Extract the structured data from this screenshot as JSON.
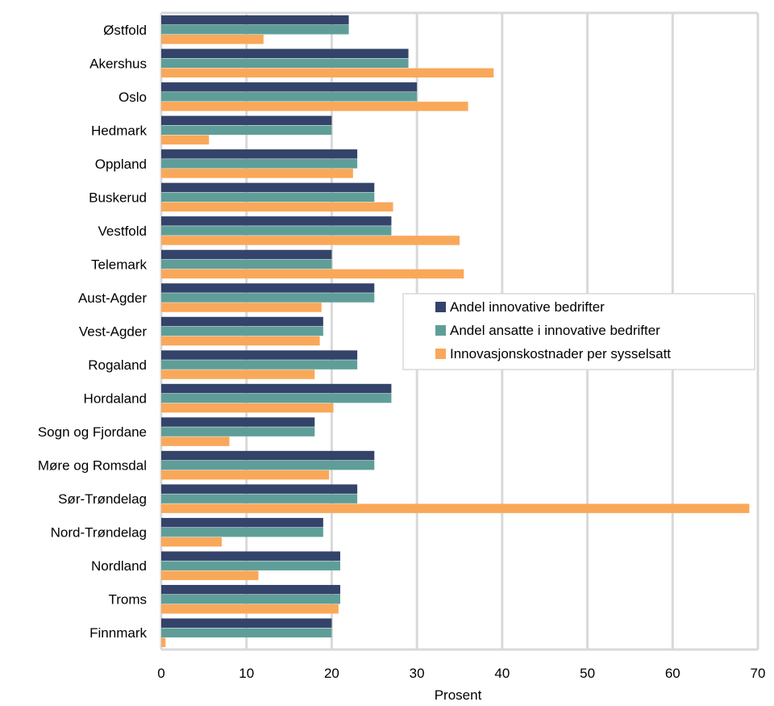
{
  "chart_data": {
    "type": "bar",
    "orientation": "horizontal",
    "categories": [
      "Østfold",
      "Akershus",
      "Oslo",
      "Hedmark",
      "Oppland",
      "Buskerud",
      "Vestfold",
      "Telemark",
      "Aust-Agder",
      "Vest-Agder",
      "Rogaland",
      "Hordaland",
      "Sogn og Fjordane",
      "Møre og Romsdal",
      "Sør-Trøndelag",
      "Nord-Trøndelag",
      "Nordland",
      "Troms",
      "Finnmark"
    ],
    "series": [
      {
        "name": "Andel innovative bedrifter",
        "color": "#34436a",
        "values": [
          22,
          29,
          30,
          20,
          23,
          25,
          27,
          20,
          25,
          19,
          23,
          27,
          18,
          25,
          23,
          19,
          21,
          21,
          20
        ]
      },
      {
        "name": "Andel ansatte i innovative bedrifter",
        "color": "#5f9e98",
        "values": [
          22,
          29,
          30,
          20,
          23,
          25,
          27,
          20,
          25,
          19,
          23,
          27,
          18,
          25,
          23,
          19,
          21,
          21,
          20
        ]
      },
      {
        "name": "Innovasjonskostnader per sysselsatt",
        "color": "#f9a85a",
        "values": [
          12,
          39,
          36,
          5.6,
          22.5,
          27.2,
          35,
          35.5,
          18.8,
          18.6,
          18,
          20.2,
          8,
          19.7,
          69,
          7.1,
          11.4,
          20.8,
          0.5
        ]
      }
    ],
    "xlabel": "Prosent",
    "xlim": [
      0,
      70
    ],
    "xticks": [
      0,
      10,
      20,
      30,
      40,
      50,
      60,
      70
    ],
    "grid": true,
    "legend_position": "right-middle"
  }
}
